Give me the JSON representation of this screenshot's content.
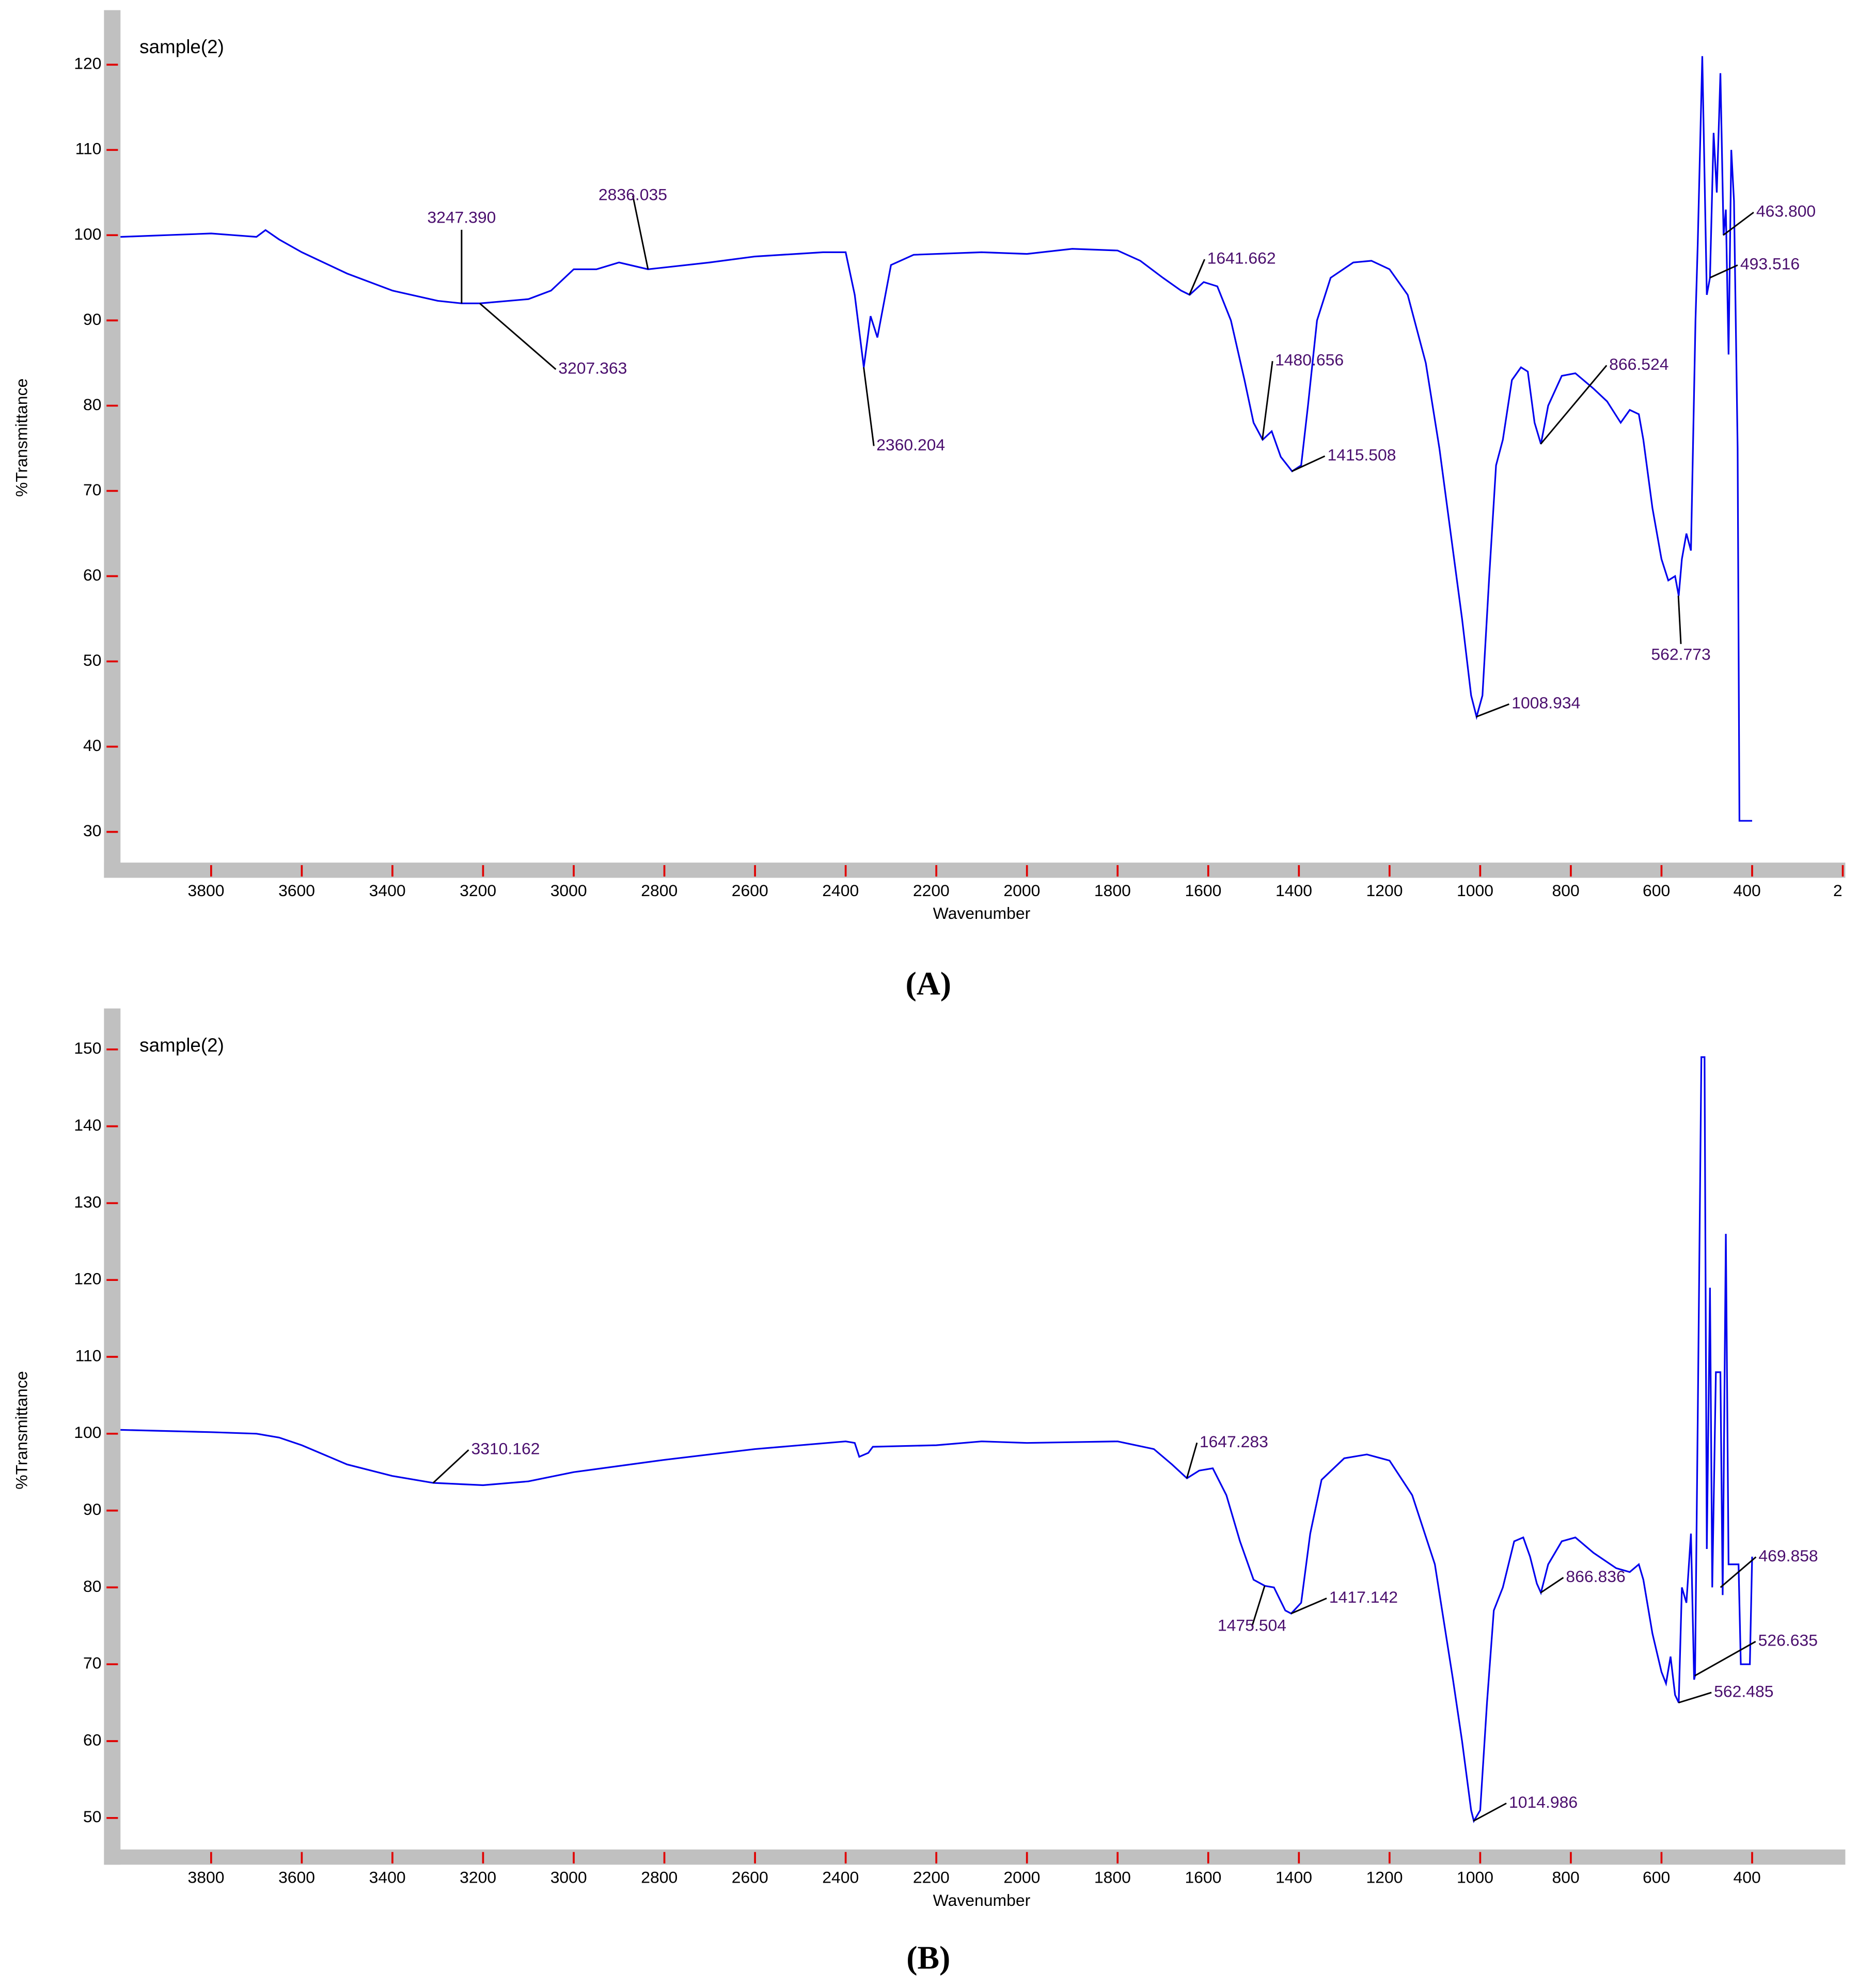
{
  "chart_data": [
    {
      "type": "line",
      "title": "sample(2)",
      "caption": "(A)",
      "xlabel": "Wavenumber",
      "ylabel": "%Transmittance",
      "color": "#0000ee",
      "xlim": [
        4000,
        200
      ],
      "ylim": [
        26.4,
        126.1
      ],
      "xticks": [
        3800,
        3600,
        3400,
        3200,
        3000,
        2800,
        2600,
        2400,
        2200,
        2000,
        1800,
        1600,
        1400,
        1200,
        1000,
        800,
        600,
        400,
        {
          "value": 200,
          "label": "2"
        }
      ],
      "yticks": [
        30,
        40,
        50,
        60,
        70,
        80,
        90,
        100,
        110,
        120
      ],
      "x": [
        4000,
        3900,
        3800,
        3750,
        3700,
        3680,
        3650,
        3600,
        3500,
        3400,
        3300,
        3247,
        3207,
        3100,
        3050,
        3000,
        2950,
        2900,
        2836,
        2700,
        2600,
        2450,
        2400,
        2380,
        2360,
        2345,
        2330,
        2300,
        2250,
        2100,
        2000,
        1900,
        1800,
        1750,
        1700,
        1660,
        1641,
        1610,
        1580,
        1550,
        1520,
        1500,
        1480,
        1460,
        1440,
        1415,
        1395,
        1380,
        1360,
        1330,
        1280,
        1240,
        1200,
        1160,
        1120,
        1090,
        1060,
        1040,
        1020,
        1008,
        995,
        980,
        965,
        950,
        930,
        910,
        895,
        880,
        866,
        850,
        820,
        790,
        750,
        720,
        690,
        670,
        650,
        640,
        620,
        600,
        585,
        570,
        562,
        555,
        545,
        535,
        525,
        520,
        510,
        500,
        493,
        485,
        478,
        470,
        463,
        458,
        452,
        446,
        440,
        432,
        428,
        400
      ],
      "values": [
        99.8,
        100,
        100.2,
        100,
        99.8,
        100.6,
        99.5,
        98,
        95.5,
        93.5,
        92.3,
        92,
        92,
        92.5,
        93.5,
        96,
        96,
        96.8,
        96,
        96.8,
        97.5,
        98,
        98,
        93,
        84.5,
        90.5,
        88,
        96.5,
        97.7,
        98,
        97.8,
        98.4,
        98.2,
        97,
        95,
        93.5,
        93,
        94.5,
        94,
        90,
        83,
        78,
        76,
        77,
        74,
        72.3,
        73,
        80,
        90,
        95,
        96.8,
        97,
        96,
        93,
        85,
        75,
        63,
        55,
        46,
        43.5,
        46,
        60,
        73,
        76,
        83,
        84.5,
        84,
        78,
        75.5,
        80,
        83.5,
        83.8,
        82,
        80.5,
        78,
        79.5,
        79,
        76,
        68,
        62,
        59.5,
        60,
        57.7,
        62,
        65,
        63,
        90,
        99,
        121,
        93,
        95,
        112,
        105,
        119,
        100,
        103,
        86,
        110,
        104,
        75,
        31.3,
        31.3
      ],
      "annotations": [
        {
          "text": "3247.390",
          "x": 3247.39,
          "y": 92
        },
        {
          "text": "3207.363",
          "x": 3207.363,
          "y": 92
        },
        {
          "text": "2836.035",
          "x": 2836.035,
          "y": 96
        },
        {
          "text": "2360.204",
          "x": 2360.204,
          "y": 84.5
        },
        {
          "text": "1641.662",
          "x": 1641.662,
          "y": 93
        },
        {
          "text": "1480.656",
          "x": 1480.656,
          "y": 76
        },
        {
          "text": "1415.508",
          "x": 1415.508,
          "y": 72.3
        },
        {
          "text": "1008.934",
          "x": 1008.934,
          "y": 43.5
        },
        {
          "text": "866.524",
          "x": 866.524,
          "y": 75.5
        },
        {
          "text": "562.773",
          "x": 562.773,
          "y": 57.7
        },
        {
          "text": "493.516",
          "x": 493.516,
          "y": 95
        },
        {
          "text": "463.800",
          "x": 463.8,
          "y": 100
        }
      ]
    },
    {
      "type": "line",
      "title": "sample(2)",
      "caption": "(B)",
      "xlabel": "Wavenumber",
      "ylabel": "%Transmittance",
      "color": "#0000ee",
      "xlim": [
        4000,
        200
      ],
      "ylim": [
        45.9,
        155
      ],
      "xticks": [
        3800,
        3600,
        3400,
        3200,
        3000,
        2800,
        2600,
        2400,
        2200,
        2000,
        1800,
        1600,
        1400,
        1200,
        1000,
        800,
        600,
        400
      ],
      "yticks": [
        50,
        60,
        70,
        80,
        90,
        100,
        110,
        120,
        130,
        140,
        150
      ],
      "x": [
        4000,
        3800,
        3700,
        3650,
        3600,
        3500,
        3400,
        3310,
        3200,
        3100,
        3000,
        2800,
        2600,
        2400,
        2380,
        2370,
        2350,
        2340,
        2200,
        2100,
        2000,
        1800,
        1720,
        1680,
        1647,
        1620,
        1590,
        1560,
        1530,
        1500,
        1475,
        1455,
        1430,
        1417,
        1395,
        1375,
        1350,
        1300,
        1250,
        1200,
        1150,
        1100,
        1060,
        1040,
        1020,
        1014,
        1000,
        985,
        970,
        950,
        925,
        905,
        890,
        875,
        866,
        850,
        820,
        790,
        750,
        700,
        670,
        650,
        640,
        620,
        600,
        590,
        580,
        570,
        562,
        555,
        545,
        535,
        528,
        526,
        520,
        512,
        505,
        500,
        493,
        488,
        480,
        470,
        465,
        458,
        452,
        430,
        425,
        405,
        400
      ],
      "values": [
        100.5,
        100.2,
        100,
        99.5,
        98.5,
        96,
        94.5,
        93.6,
        93.3,
        93.8,
        95,
        96.6,
        98,
        99,
        98.8,
        97,
        97.5,
        98.3,
        98.5,
        99,
        98.8,
        99,
        98,
        96,
        94.2,
        95.2,
        95.5,
        92,
        86,
        81,
        80.2,
        80,
        77,
        76.6,
        78,
        87,
        94,
        96.8,
        97.3,
        96.5,
        92,
        83,
        68,
        60,
        51,
        49.6,
        51,
        65,
        77,
        80,
        86,
        86.5,
        84,
        80.5,
        79.3,
        83,
        86,
        86.5,
        84.5,
        82.5,
        82,
        83,
        81,
        74,
        69,
        67.5,
        71,
        66,
        65,
        80,
        78,
        87,
        68,
        68.5,
        102,
        149,
        149,
        85,
        119,
        80,
        108,
        108,
        79,
        126,
        83,
        83,
        70,
        70,
        84
      ],
      "annotations": [
        {
          "text": "3310.162",
          "x": 3310.162,
          "y": 93.6
        },
        {
          "text": "1647.283",
          "x": 1647.283,
          "y": 94.2
        },
        {
          "text": "1475.504",
          "x": 1475.504,
          "y": 80.2
        },
        {
          "text": "1417.142",
          "x": 1417.142,
          "y": 76.6
        },
        {
          "text": "1014.986",
          "x": 1014.986,
          "y": 49.6
        },
        {
          "text": "866.836",
          "x": 866.836,
          "y": 79.3
        },
        {
          "text": "562.485",
          "x": 562.485,
          "y": 65
        },
        {
          "text": "526.635",
          "x": 526.635,
          "y": 68.5
        },
        {
          "text": "469.858",
          "x": 469.858,
          "y": 80
        }
      ]
    }
  ]
}
